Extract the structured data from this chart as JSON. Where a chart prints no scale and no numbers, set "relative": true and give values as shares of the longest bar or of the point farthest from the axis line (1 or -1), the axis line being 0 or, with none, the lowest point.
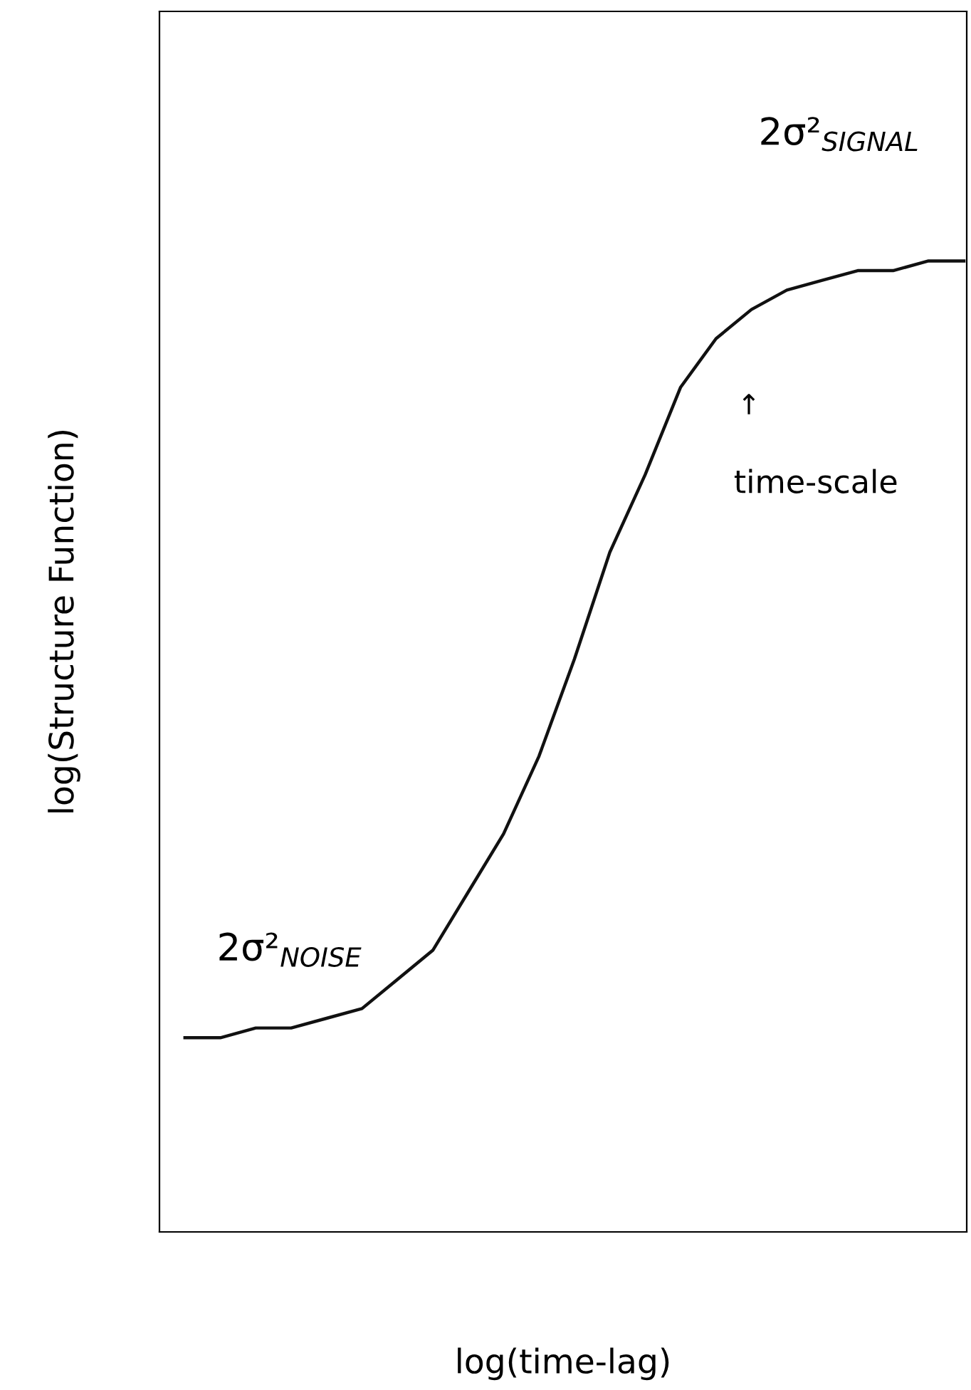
{
  "chart_data": {
    "type": "line",
    "relative": true,
    "xlabel": "log(time-lag)",
    "ylabel": "log(Structure Function)",
    "categories": [
      null,
      null,
      null,
      null,
      null,
      null,
      null,
      null,
      null,
      null,
      null,
      null,
      null,
      null,
      null,
      null,
      null,
      null,
      null,
      null,
      null,
      null,
      null
    ],
    "series": [
      {
        "color": "#111111",
        "values": [
          0.2,
          0.2,
          0.21,
          0.21,
          0.22,
          0.23,
          0.26,
          0.29,
          0.35,
          0.41,
          0.49,
          0.59,
          0.7,
          0.78,
          0.87,
          0.92,
          0.95,
          0.97,
          0.98,
          0.99,
          0.99,
          1.0,
          1.0
        ]
      }
    ],
    "annotations": [
      "2σ²$_{NOISE}$",
      "2σ²$_{SIGNAL}$",
      "↑",
      "time-scale"
    ],
    "grid": false,
    "legend": false,
    "marker": "none",
    "line_style": "solid"
  }
}
